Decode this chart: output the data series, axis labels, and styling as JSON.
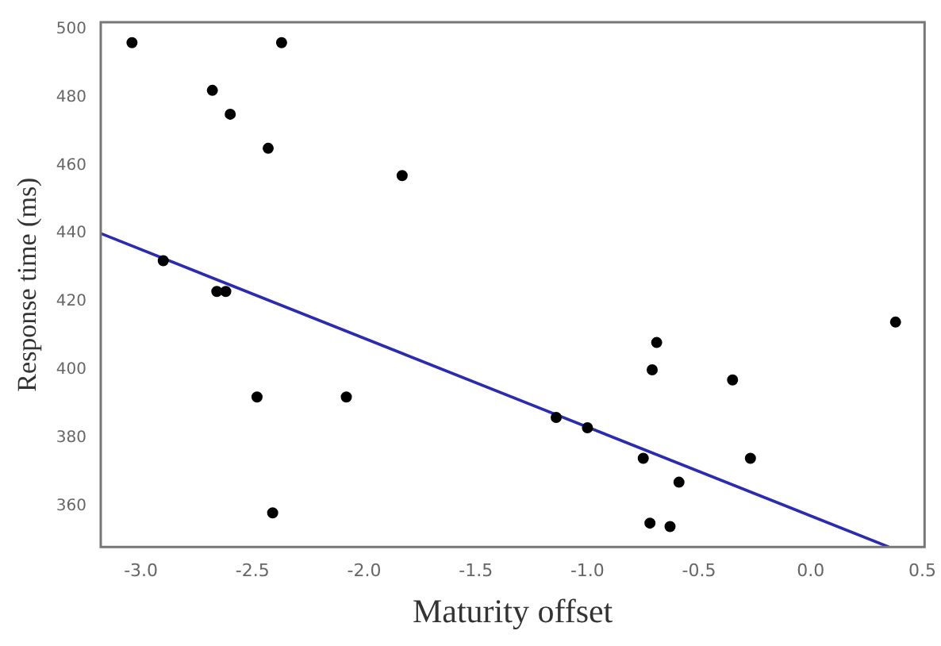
{
  "chart_data": {
    "type": "scatter",
    "xlabel": "Maturity offset",
    "ylabel": "Response time (ms)",
    "xlim": [
      -3.18,
      0.51
    ],
    "xticks": [
      {
        "value": -3,
        "label": "-3.0"
      },
      {
        "value": -2.5,
        "label": "-2.5"
      },
      {
        "value": -2,
        "label": "-2.0"
      },
      {
        "value": -1.5,
        "label": "-1.5"
      },
      {
        "value": -1,
        "label": "-1.0"
      },
      {
        "value": -0.5,
        "label": "-0.5"
      },
      {
        "value": 0,
        "label": "0.0"
      },
      {
        "value": 0.5,
        "label": "0.5"
      }
    ],
    "ylim": [
      348,
      502
    ],
    "yticks": [
      360,
      380,
      400,
      420,
      440,
      460,
      480,
      500
    ],
    "grid": false,
    "marker": "circle",
    "series": [
      {
        "type": "scatter",
        "color": "#000000",
        "x": [
          -3.04,
          -2.68,
          -2.6,
          -2.37,
          -2.43,
          -1.83,
          -2.9,
          -2.66,
          -2.62,
          -2.48,
          -2.08,
          -2.41,
          0.38,
          -0.69,
          -0.71,
          -0.35,
          -1.14,
          -1.0,
          -0.75,
          -0.27,
          -0.59,
          -0.72,
          -0.63
        ],
        "values": [
          496,
          482,
          475,
          496,
          465,
          457,
          432,
          423,
          423,
          392,
          392,
          358,
          414,
          408,
          400,
          397,
          386,
          383,
          374,
          374,
          367,
          355,
          354
        ]
      },
      {
        "type": "line",
        "color": "#2b2bb0",
        "x": [
          -3.18,
          0.35
        ],
        "values": [
          440,
          348
        ],
        "marker": "none"
      }
    ]
  }
}
